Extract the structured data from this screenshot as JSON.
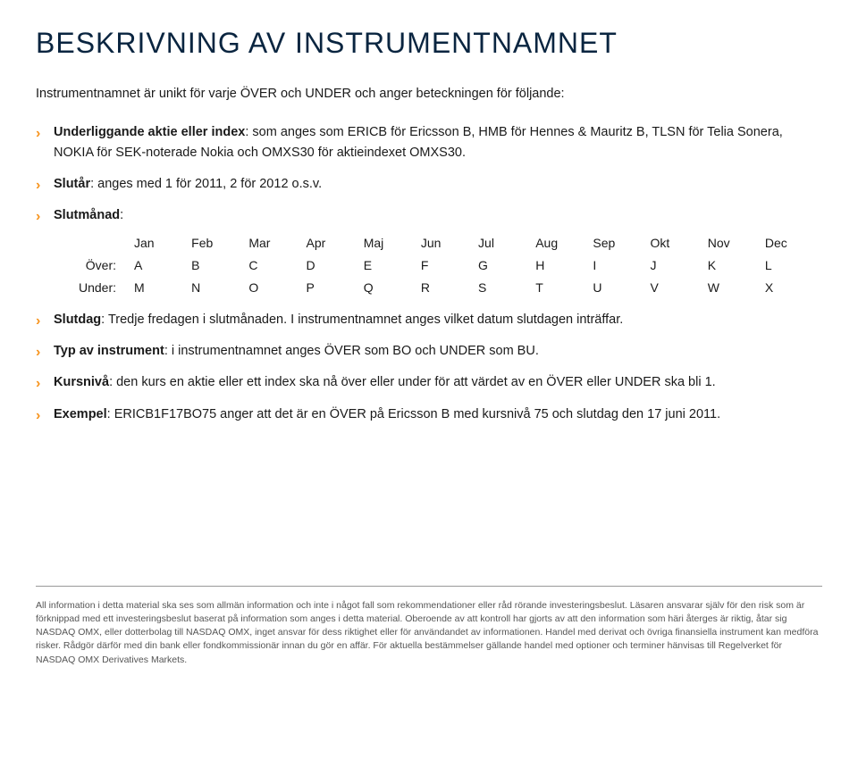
{
  "title": "BESKRIVNING AV INSTRUMENTNAMNET",
  "intro": "Instrumentnamnet är unikt för varje ÖVER och UNDER och anger beteckningen för följande:",
  "bullets": {
    "b1_label": "Underliggande aktie eller index",
    "b1_text": ": som anges som ERICB för Ericsson B, HMB för Hennes & Mauritz B, TLSN för Telia Sonera, NOKIA för SEK-noterade Nokia och OMXS30 för aktieindexet OMXS30.",
    "b2_label": "Slutår",
    "b2_text": ": anges med 1 för 2011, 2 för 2012 o.s.v.",
    "b3_label": "Slutmånad",
    "b3_text": ":",
    "b4_label": "Slutdag",
    "b4_text": ": Tredje fredagen i slutmånaden. I instrumentnamnet anges vilket datum slutdagen inträffar.",
    "b5_label": "Typ av instrument",
    "b5_text": ": i instrumentnamnet anges ÖVER som BO och UNDER som BU.",
    "b6_label": "Kursnivå",
    "b6_text": ": den kurs en aktie eller ett index ska nå över eller under för att värdet av en ÖVER eller UNDER ska bli 1.",
    "b7_label": "Exempel",
    "b7_text": ": ERICB1F17BO75 anger att det är en ÖVER på Ericsson B med kursnivå 75 och slutdag den 17 juni 2011."
  },
  "months": {
    "header": [
      "Jan",
      "Feb",
      "Mar",
      "Apr",
      "Maj",
      "Jun",
      "Jul",
      "Aug",
      "Sep",
      "Okt",
      "Nov",
      "Dec"
    ],
    "over_label": "Över:",
    "over": [
      "A",
      "B",
      "C",
      "D",
      "E",
      "F",
      "G",
      "H",
      "I",
      "J",
      "K",
      "L"
    ],
    "under_label": "Under:",
    "under": [
      "M",
      "N",
      "O",
      "P",
      "Q",
      "R",
      "S",
      "T",
      "U",
      "V",
      "W",
      "X"
    ]
  },
  "disclaimer": "All information i detta material ska ses som allmän information och inte i något fall som rekommendationer eller råd rörande investeringsbeslut. Läsaren ansvarar själv för den risk som är förknippad med ett investeringsbeslut baserat på information som anges i detta material. Oberoende av att kontroll har gjorts av att den information som häri återges är riktig, åtar sig NASDAQ OMX, eller dotterbolag till NASDAQ OMX, inget ansvar för dess riktighet eller för användandet av informationen. Handel med derivat och övriga finansiella instrument kan medföra risker. Rådgör därför med din bank eller fondkommissionär innan du gör en affär. För aktuella bestämmelser gällande handel med optioner och terminer hänvisas till Regelverket för NASDAQ OMX Derivatives Markets.",
  "colors": {
    "title": "#0a2540",
    "bullet_marker": "#f7941e",
    "text": "#1a1a1a",
    "disclaimer": "#555555",
    "divider": "#999999",
    "background": "#ffffff"
  }
}
